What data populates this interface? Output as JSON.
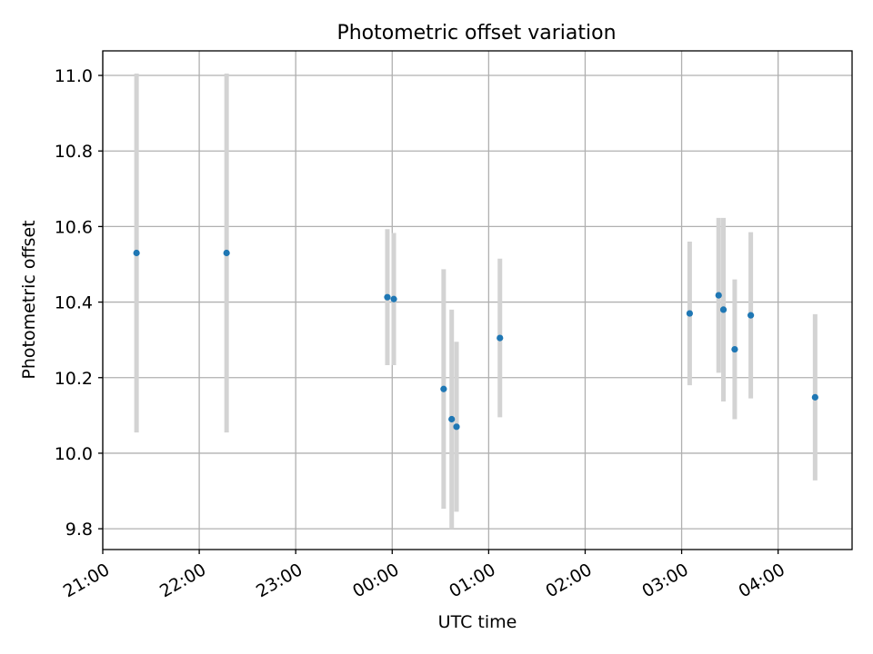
{
  "chart_data": {
    "type": "scatter",
    "title": "Photometric offset variation",
    "xlabel": "UTC time",
    "ylabel": "Photometric offset",
    "x_axis": {
      "kind": "time",
      "start": "21:00",
      "end": "04:46",
      "ticks": [
        "21:00",
        "22:00",
        "23:00",
        "00:00",
        "01:00",
        "02:00",
        "03:00",
        "04:00"
      ]
    },
    "y_axis": {
      "range": [
        9.745,
        11.065
      ],
      "ticks": [
        9.8,
        10.0,
        10.2,
        10.4,
        10.6,
        10.8,
        11.0
      ],
      "tick_labels": [
        "9.8",
        "10.0",
        "10.2",
        "10.4",
        "10.6",
        "10.8",
        "11.0"
      ]
    },
    "grid": true,
    "point_color": "#1f77b4",
    "errorbar_color": "#d3d3d3",
    "points": [
      {
        "time": "21:21",
        "y": 10.53,
        "err": 0.475
      },
      {
        "time": "22:17",
        "y": 10.53,
        "err": 0.475
      },
      {
        "time": "23:57",
        "y": 10.413,
        "err": 0.18
      },
      {
        "time": "00:01",
        "y": 10.408,
        "err": 0.175
      },
      {
        "time": "00:32",
        "y": 10.17,
        "err": 0.317
      },
      {
        "time": "00:37",
        "y": 10.09,
        "err": 0.29
      },
      {
        "time": "00:40",
        "y": 10.07,
        "err": 0.225
      },
      {
        "time": "01:07",
        "y": 10.305,
        "err": 0.21
      },
      {
        "time": "03:05",
        "y": 10.37,
        "err": 0.19
      },
      {
        "time": "03:23",
        "y": 10.418,
        "err": 0.205
      },
      {
        "time": "03:26",
        "y": 10.38,
        "err": 0.243
      },
      {
        "time": "03:33",
        "y": 10.275,
        "err": 0.185
      },
      {
        "time": "03:43",
        "y": 10.365,
        "err": 0.22
      },
      {
        "time": "04:23",
        "y": 10.148,
        "err": 0.22
      }
    ]
  }
}
